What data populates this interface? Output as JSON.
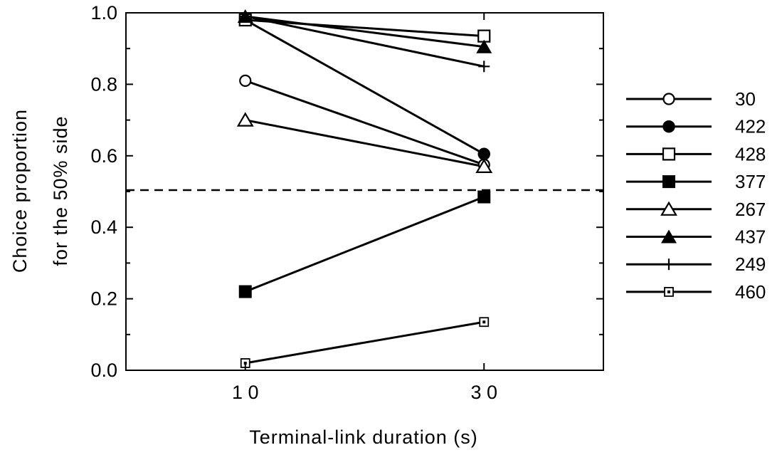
{
  "chart_data": {
    "type": "line",
    "title": "",
    "xlabel": "Terminal-link duration (s)",
    "ylabel_line1": "Choice proportion",
    "ylabel_line2": "for the 50% side",
    "x": [
      10,
      30
    ],
    "x_tick_labels": [
      "1 0",
      "3 0"
    ],
    "xlim": [
      0,
      40
    ],
    "ylim": [
      0,
      1
    ],
    "y_ticks": [
      0,
      0.2,
      0.4,
      0.6,
      0.8,
      1.0
    ],
    "y_tick_labels": [
      "0.0",
      "0.2",
      "0.4",
      "0.6",
      "0.8",
      "1.0"
    ],
    "reference_line": {
      "y": 0.5,
      "style": "dashed"
    },
    "legend_position": "right",
    "grid": false,
    "series": [
      {
        "name": "30",
        "marker": "circle-open",
        "values": [
          0.81,
          0.575
        ]
      },
      {
        "name": "422",
        "marker": "circle-filled",
        "values": [
          0.98,
          0.605
        ]
      },
      {
        "name": "428",
        "marker": "square-open",
        "values": [
          0.98,
          0.935
        ]
      },
      {
        "name": "377",
        "marker": "square-filled",
        "values": [
          0.22,
          0.485
        ]
      },
      {
        "name": "267",
        "marker": "triangle-open",
        "values": [
          0.7,
          0.57
        ]
      },
      {
        "name": "437",
        "marker": "triangle-filled",
        "values": [
          0.99,
          0.905
        ]
      },
      {
        "name": "249",
        "marker": "plus",
        "values": [
          0.99,
          0.85
        ]
      },
      {
        "name": "460",
        "marker": "square-small",
        "values": [
          0.02,
          0.135
        ]
      }
    ]
  }
}
